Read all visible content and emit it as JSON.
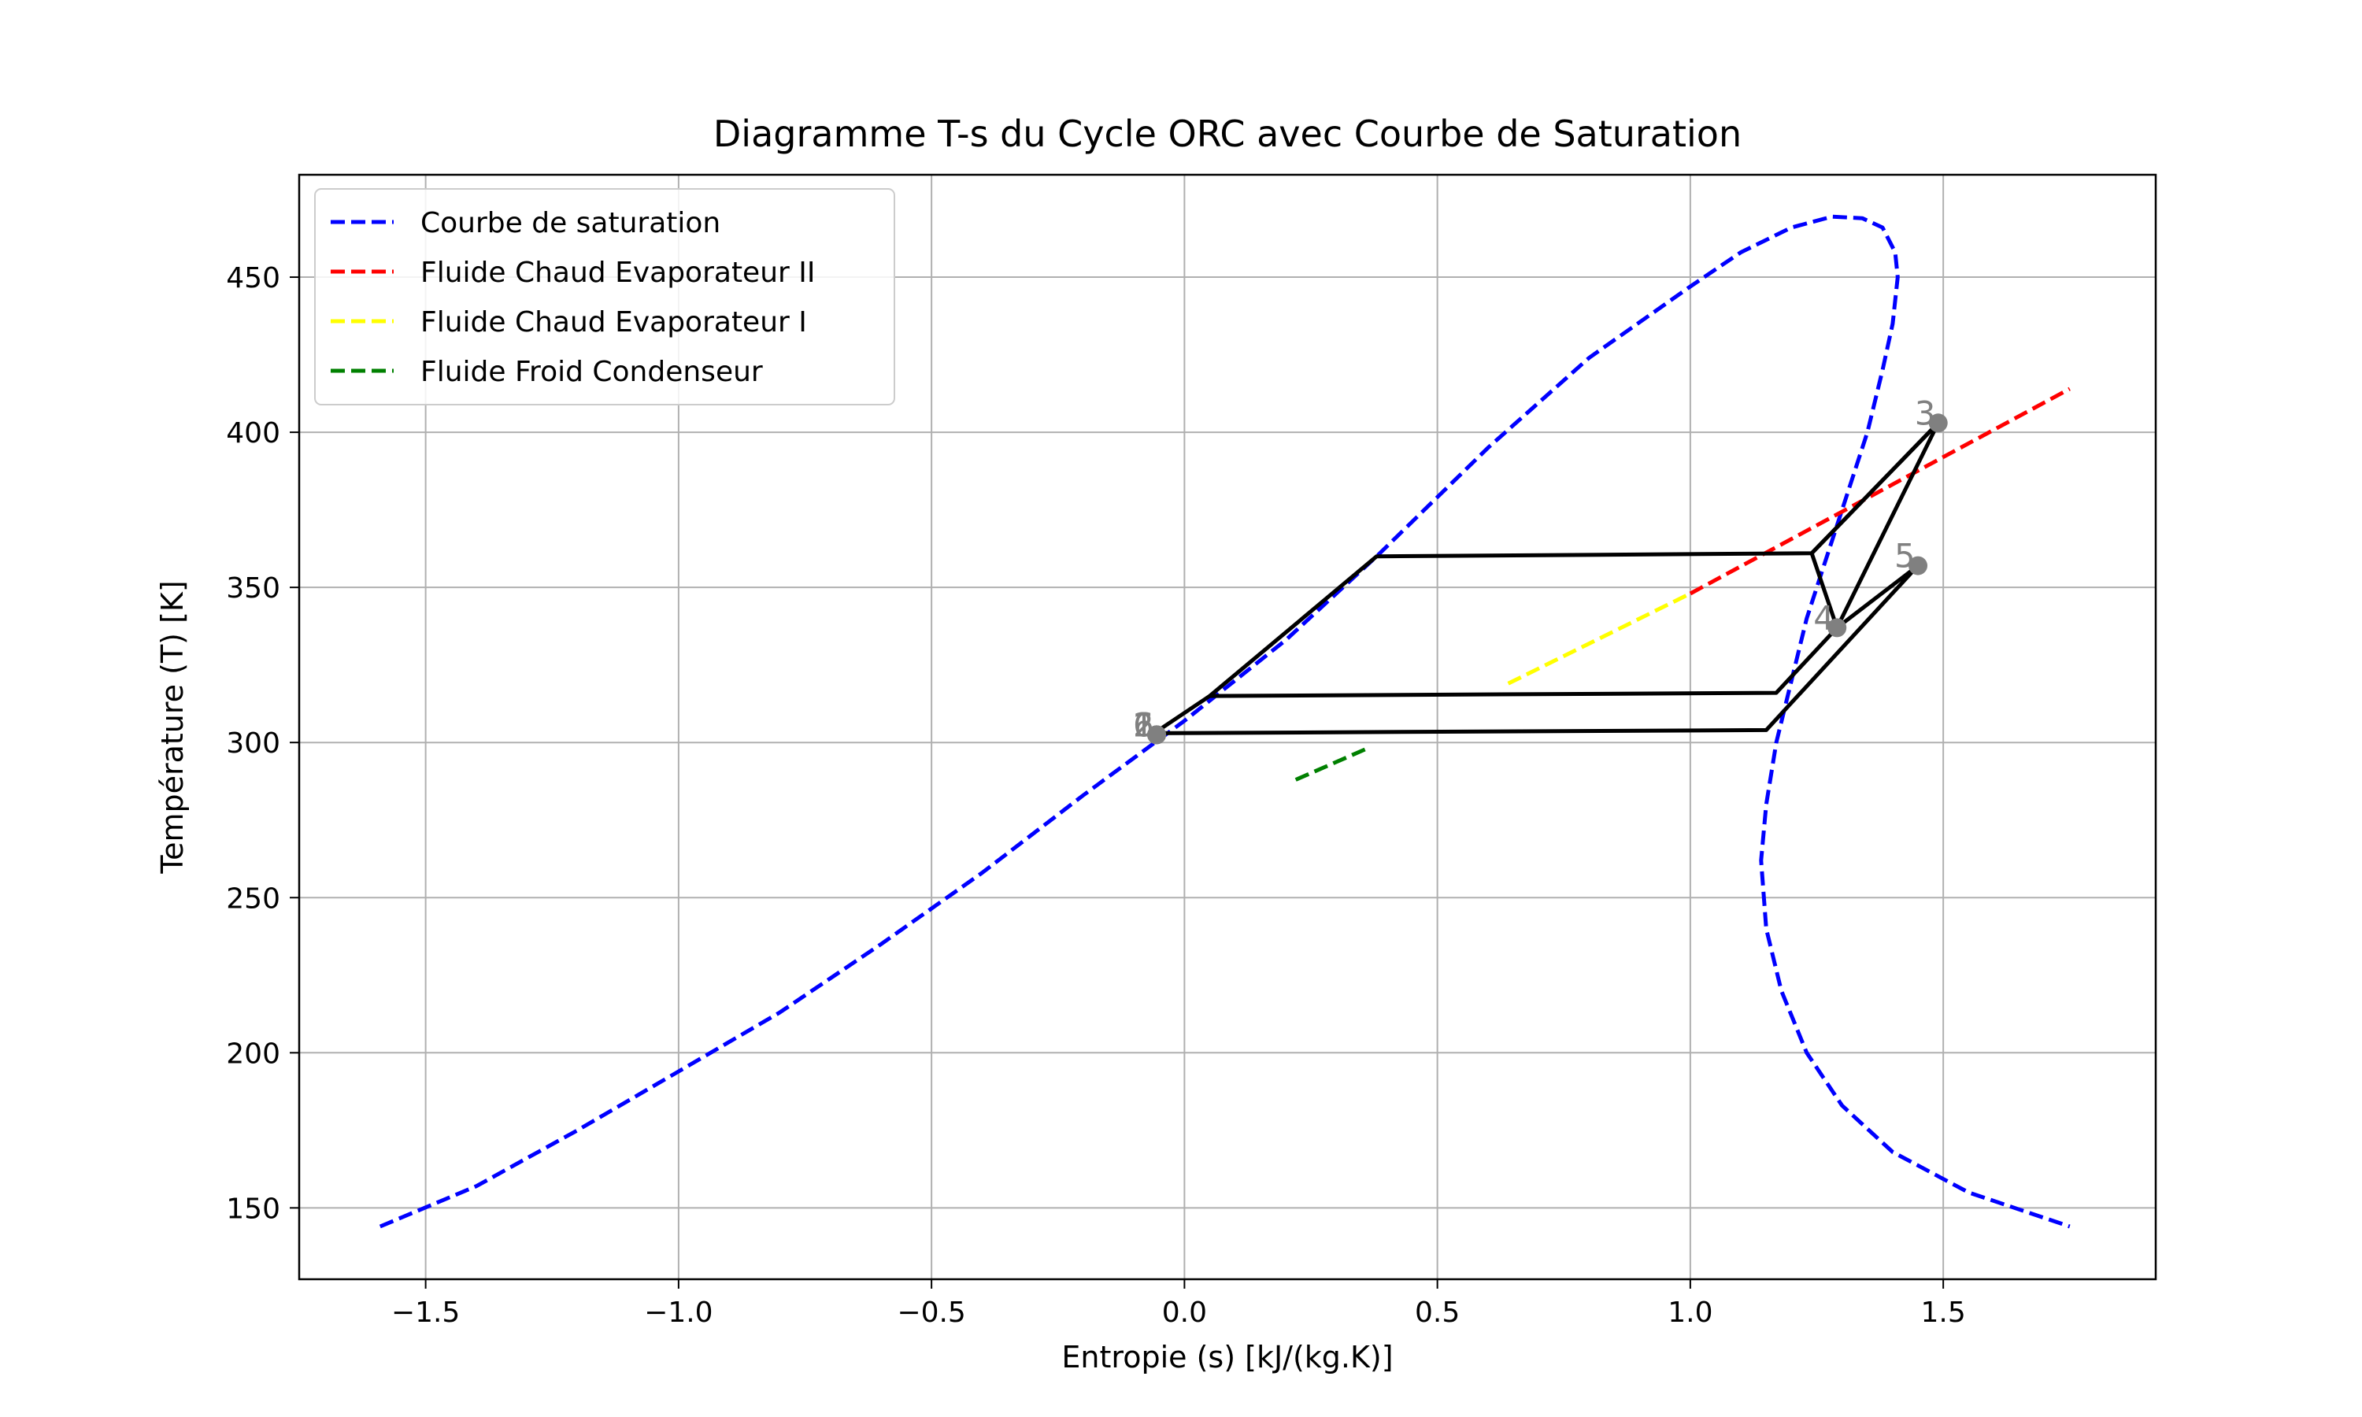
{
  "chart_data": {
    "type": "line",
    "title": "Diagramme T-s du Cycle ORC avec Courbe de Saturation",
    "xlabel": "Entropie (s) [kJ/(kg.K)]",
    "ylabel": "Température (T) [K]",
    "xlim": [
      -1.75,
      1.92
    ],
    "ylim": [
      127,
      483
    ],
    "xticks": [
      -1.5,
      -1.0,
      -0.5,
      0.0,
      0.5,
      1.0,
      1.5
    ],
    "xtick_labels": [
      "−1.5",
      "−1.0",
      "−0.5",
      "0.0",
      "0.5",
      "1.0",
      "1.5"
    ],
    "yticks": [
      150,
      200,
      250,
      300,
      350,
      400,
      450
    ],
    "ytick_labels": [
      "150",
      "200",
      "250",
      "300",
      "350",
      "400",
      "450"
    ],
    "grid": true,
    "legend_position": "top-left",
    "series": [
      {
        "name": "Courbe de saturation",
        "color": "#0000ff",
        "style": "dashed",
        "x": [
          -1.59,
          -1.4,
          -1.2,
          -1.0,
          -0.8,
          -0.6,
          -0.4,
          -0.2,
          0.0,
          0.2,
          0.38,
          0.6,
          0.8,
          1.0,
          1.1,
          1.2,
          1.28,
          1.34,
          1.38,
          1.405,
          1.41,
          1.4,
          1.38,
          1.35,
          1.31,
          1.27,
          1.23,
          1.2,
          1.17,
          1.15,
          1.14,
          1.15,
          1.18,
          1.23,
          1.3,
          1.4,
          1.55,
          1.75
        ],
        "y": [
          144,
          157,
          175,
          194,
          213,
          235,
          258,
          283,
          307,
          333,
          360,
          395,
          424,
          447,
          458,
          466,
          469.5,
          469,
          466,
          458,
          450,
          435,
          420,
          400,
          380,
          360,
          340,
          320,
          300,
          280,
          262,
          240,
          220,
          200,
          183,
          168,
          155,
          144
        ]
      },
      {
        "name": "Fluide Chaud Evaporateur II",
        "color": "#ff0000",
        "style": "dashed",
        "x": [
          1.0,
          1.75
        ],
        "y": [
          348,
          414
        ]
      },
      {
        "name": "Fluide Chaud Evaporateur I",
        "color": "#ffff00",
        "style": "dashed",
        "x": [
          0.64,
          1.0
        ],
        "y": [
          319,
          348
        ]
      },
      {
        "name": "Fluide Froid Condenseur",
        "color": "#008000",
        "style": "dashed",
        "x": [
          0.22,
          0.36
        ],
        "y": [
          288,
          298
        ]
      },
      {
        "name": "",
        "color": "#000000",
        "style": "solid",
        "x": [
          -0.06,
          0.05,
          0.38,
          1.24,
          1.49,
          1.29,
          1.17,
          0.05
        ],
        "y": [
          303,
          315,
          360,
          361,
          403,
          337,
          316,
          315
        ]
      },
      {
        "name": "",
        "color": "#000000",
        "style": "solid",
        "x": [
          -0.06,
          1.15,
          1.45,
          1.29,
          1.24,
          1.49
        ],
        "y": [
          303,
          304,
          357,
          337,
          361,
          403
        ]
      }
    ],
    "points": [
      {
        "label": "1",
        "x": -0.055,
        "y": 302.5
      },
      {
        "label": "2",
        "x": -0.055,
        "y": 302.5
      },
      {
        "label": "3",
        "x": 1.49,
        "y": 403
      },
      {
        "label": "4",
        "x": 1.29,
        "y": 337
      },
      {
        "label": "5",
        "x": 1.45,
        "y": 357
      },
      {
        "label": "6",
        "x": -0.055,
        "y": 302.5
      }
    ],
    "point_color": "#808080"
  }
}
